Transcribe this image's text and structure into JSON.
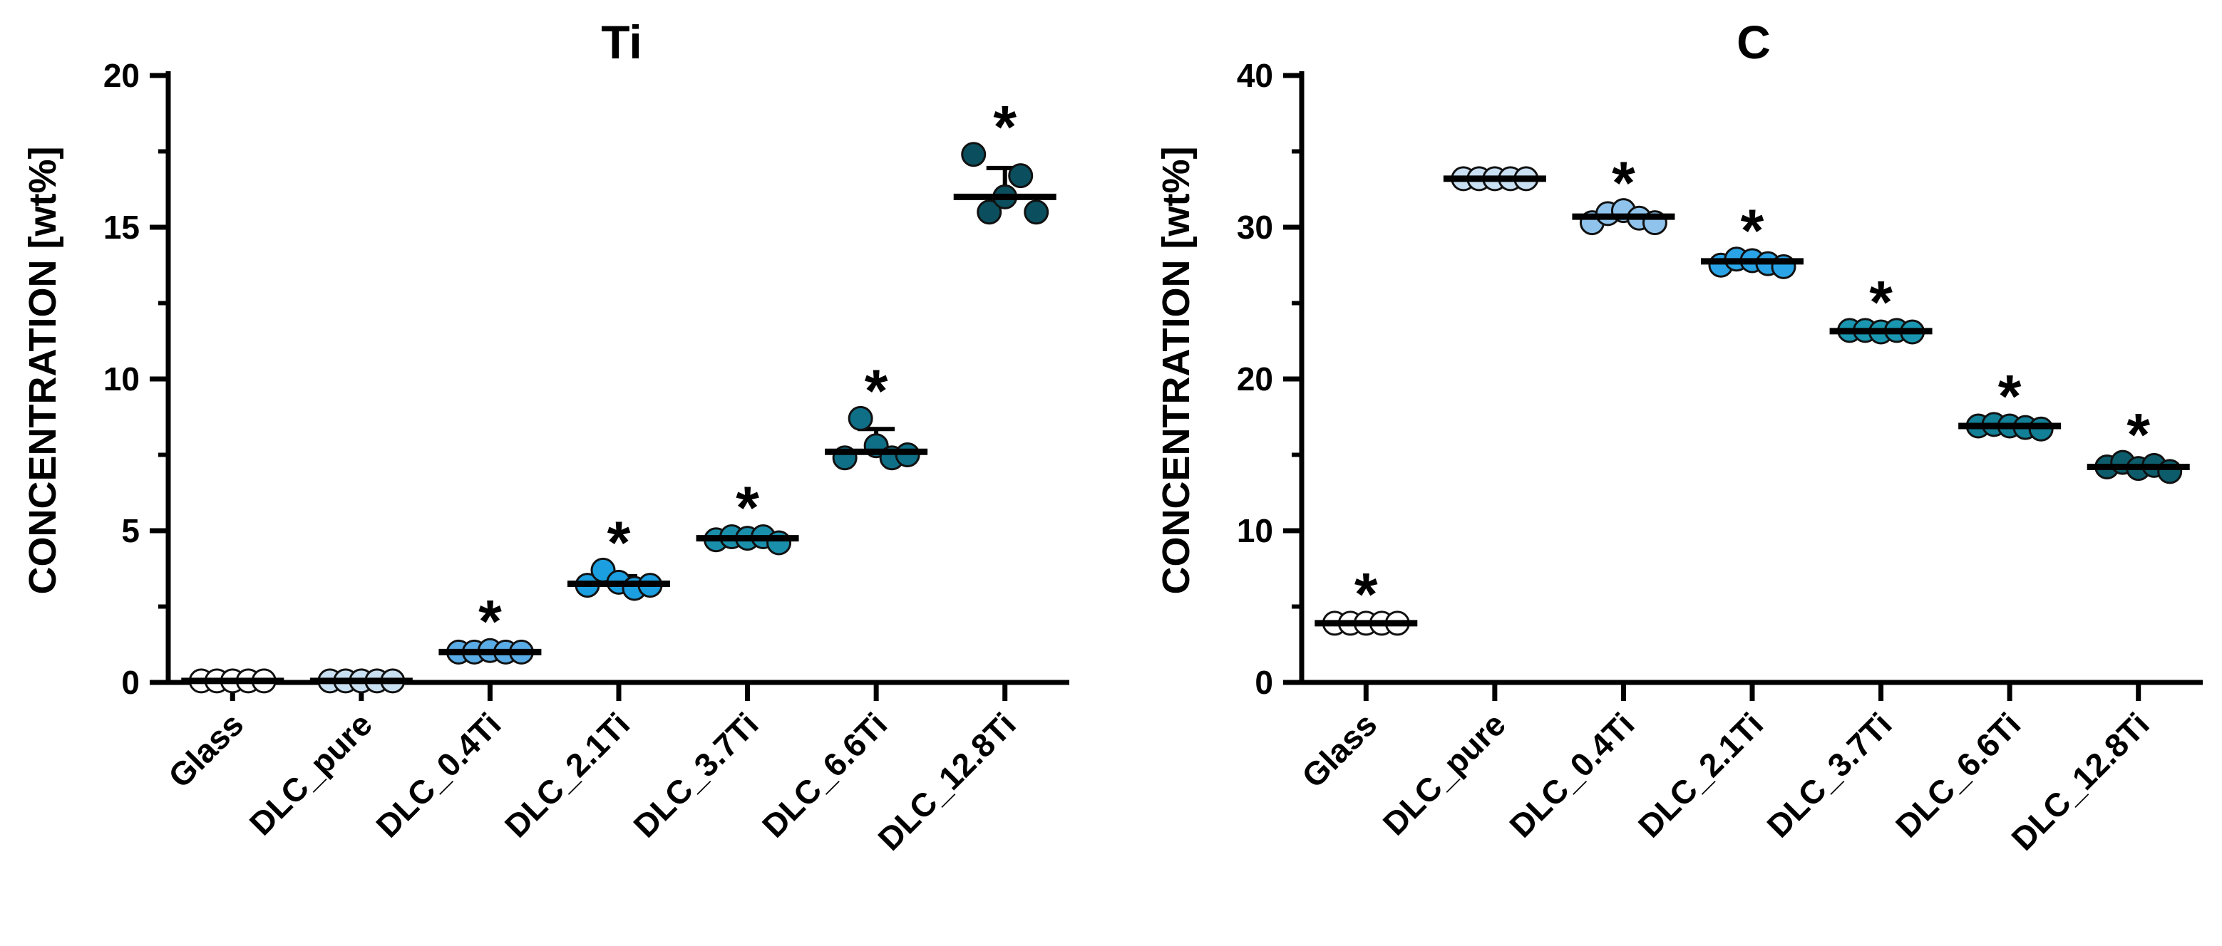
{
  "chart_data": [
    {
      "type": "scatter",
      "title": "Ti",
      "xlabel": "",
      "ylabel": "CONCENTRATION [wt%]",
      "ylim": [
        0,
        20
      ],
      "yticks": [
        0,
        5,
        10,
        15,
        20
      ],
      "grid": false,
      "categories": [
        "Glass",
        "DLC_pure",
        "DLC_0.4Ti",
        "DLC_2.1Ti",
        "DLC_3.7Ti",
        "DLC_6.6Ti",
        "DLC_12.8Ti"
      ],
      "series": [
        {
          "name": "Glass",
          "values": [
            0.05,
            0.05,
            0.05,
            0.05,
            0.05
          ],
          "mean": 0.05,
          "sd": 0.0,
          "significant": false
        },
        {
          "name": "DLC_pure",
          "values": [
            0.05,
            0.05,
            0.05,
            0.05,
            0.05
          ],
          "mean": 0.05,
          "sd": 0.0,
          "significant": false
        },
        {
          "name": "DLC_0.4Ti",
          "values": [
            1.0,
            1.0,
            1.05,
            1.0,
            1.0
          ],
          "mean": 1.0,
          "sd": 0.1,
          "significant": true
        },
        {
          "name": "DLC_2.1Ti",
          "values": [
            3.2,
            3.7,
            3.3,
            3.1,
            3.2
          ],
          "mean": 3.25,
          "sd": 0.25,
          "significant": true
        },
        {
          "name": "DLC_3.7Ti",
          "values": [
            4.7,
            4.8,
            4.75,
            4.8,
            4.6
          ],
          "mean": 4.75,
          "sd": 0.1,
          "significant": true
        },
        {
          "name": "DLC_6.6Ti",
          "values": [
            7.4,
            8.7,
            7.8,
            7.4,
            7.5
          ],
          "mean": 7.6,
          "sd": 0.75,
          "significant": true
        },
        {
          "name": "DLC_12.8Ti",
          "values": [
            17.4,
            15.5,
            16.0,
            16.7,
            15.5
          ],
          "mean": 16.0,
          "sd": 0.95,
          "significant": true
        }
      ],
      "colors": [
        "#ffffff",
        "#c9dff2",
        "#5aace6",
        "#1b9fe0",
        "#1a8fab",
        "#0f6f87",
        "#0b4f5e"
      ]
    },
    {
      "type": "scatter",
      "title": "C",
      "xlabel": "",
      "ylabel": "CONCENTRATION [wt%]",
      "ylim": [
        0,
        40
      ],
      "yticks": [
        0,
        10,
        20,
        30,
        40
      ],
      "grid": false,
      "categories": [
        "Glass",
        "DLC_pure",
        "DLC_0.4Ti",
        "DLC_2.1Ti",
        "DLC_3.7Ti",
        "DLC_6.6Ti",
        "DLC_12.8Ti"
      ],
      "series": [
        {
          "name": "Glass",
          "values": [
            3.9,
            3.9,
            3.9,
            3.9,
            3.9
          ],
          "mean": 3.9,
          "sd": 0.1,
          "significant": true
        },
        {
          "name": "DLC_pure",
          "values": [
            33.2,
            33.2,
            33.2,
            33.2,
            33.2
          ],
          "mean": 33.2,
          "sd": 0.1,
          "significant": false
        },
        {
          "name": "DLC_0.4Ti",
          "values": [
            30.3,
            30.9,
            31.1,
            30.6,
            30.3
          ],
          "mean": 30.7,
          "sd": 0.35,
          "significant": true
        },
        {
          "name": "DLC_2.1Ti",
          "values": [
            27.5,
            27.9,
            27.8,
            27.6,
            27.4
          ],
          "mean": 27.75,
          "sd": 0.2,
          "significant": true
        },
        {
          "name": "DLC_3.7Ti",
          "values": [
            23.2,
            23.2,
            23.1,
            23.2,
            23.1
          ],
          "mean": 23.15,
          "sd": 0.1,
          "significant": true
        },
        {
          "name": "DLC_6.6Ti",
          "values": [
            16.9,
            17.0,
            16.9,
            16.8,
            16.7
          ],
          "mean": 16.9,
          "sd": 0.15,
          "significant": true
        },
        {
          "name": "DLC_12.8Ti",
          "values": [
            14.2,
            14.5,
            14.1,
            14.3,
            13.9
          ],
          "mean": 14.2,
          "sd": 0.2,
          "significant": true
        }
      ],
      "colors": [
        "#ffffff",
        "#c9dff2",
        "#8fc3ec",
        "#2aa4e6",
        "#1a96b0",
        "#128096",
        "#0c5c6b"
      ]
    }
  ],
  "significance_marker": "*"
}
